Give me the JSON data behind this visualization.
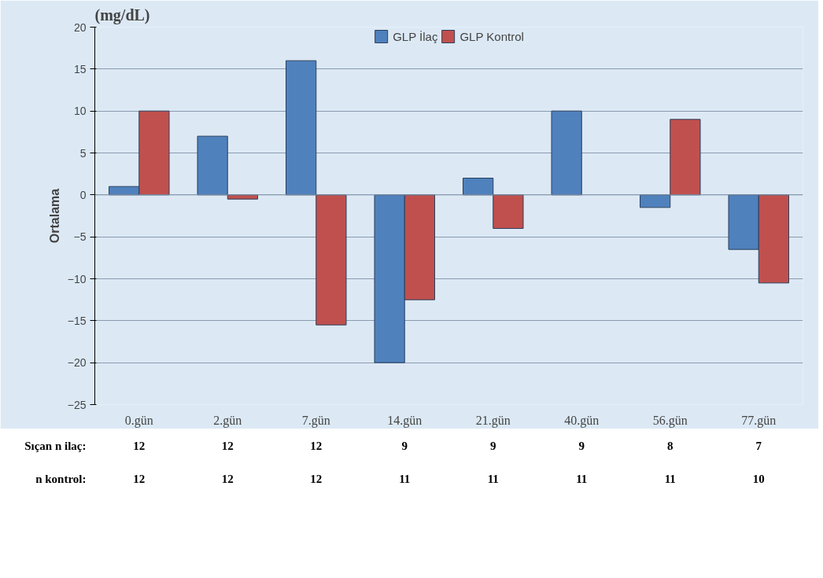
{
  "chart_data": {
    "type": "bar",
    "title": "(mg/dL)",
    "ylabel": "Ortalama",
    "categories": [
      "0.gün",
      "2.gün",
      "7.gün",
      "14.gün",
      "21.gün",
      "40.gün",
      "56.gün",
      "77.gün"
    ],
    "series": [
      {
        "name": "GLP İlaç",
        "color": "#4f81bd",
        "values": [
          1,
          7,
          16,
          -20,
          2,
          10,
          -1.5,
          -6.5
        ]
      },
      {
        "name": "GLP Kontrol",
        "color": "#c0504d",
        "values": [
          10,
          -0.5,
          -15.5,
          -12.5,
          -4,
          null,
          9,
          -10.5
        ]
      }
    ],
    "ylim": [
      -25,
      20
    ],
    "yticks": [
      -25,
      -20,
      -15,
      -10,
      -5,
      0,
      5,
      10,
      15,
      20
    ],
    "grid": "y",
    "legend": "top",
    "annotations": [
      "Sıçan n ilaç:",
      "12",
      "12",
      "12",
      "9",
      "9",
      "9",
      "8",
      "7",
      "n kontrol:",
      "12",
      "12",
      "12",
      "11",
      "11",
      "11",
      "11",
      "10"
    ]
  }
}
